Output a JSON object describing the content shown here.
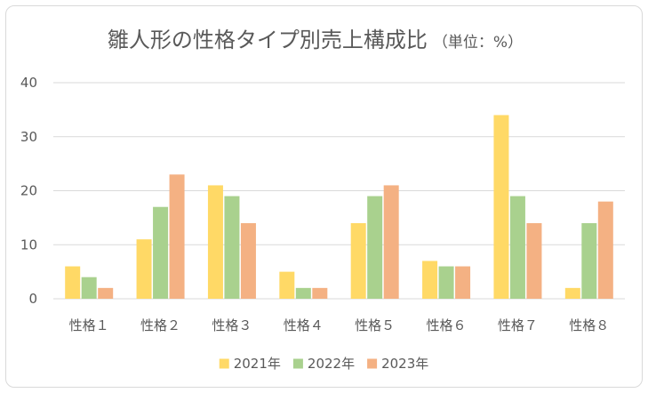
{
  "chart_data": {
    "type": "bar",
    "title": "雛人形の性格タイプ別売上構成比",
    "subtitle": "（単位：%）",
    "categories": [
      "性格１",
      "性格２",
      "性格３",
      "性格４",
      "性格５",
      "性格６",
      "性格７",
      "性格８"
    ],
    "series": [
      {
        "name": "2021年",
        "color": "#ffd966",
        "values": [
          6,
          11,
          21,
          5,
          14,
          7,
          34,
          2
        ]
      },
      {
        "name": "2022年",
        "color": "#a9d18e",
        "values": [
          4,
          17,
          19,
          2,
          19,
          6,
          19,
          14
        ]
      },
      {
        "name": "2023年",
        "color": "#f4b183",
        "values": [
          2,
          23,
          14,
          2,
          21,
          6,
          14,
          18
        ]
      }
    ],
    "ylim": [
      0,
      40
    ],
    "yticks": [
      0,
      10,
      20,
      30,
      40
    ],
    "grid": true,
    "gridColor": "#d9d9d9",
    "legend": "bottom"
  }
}
